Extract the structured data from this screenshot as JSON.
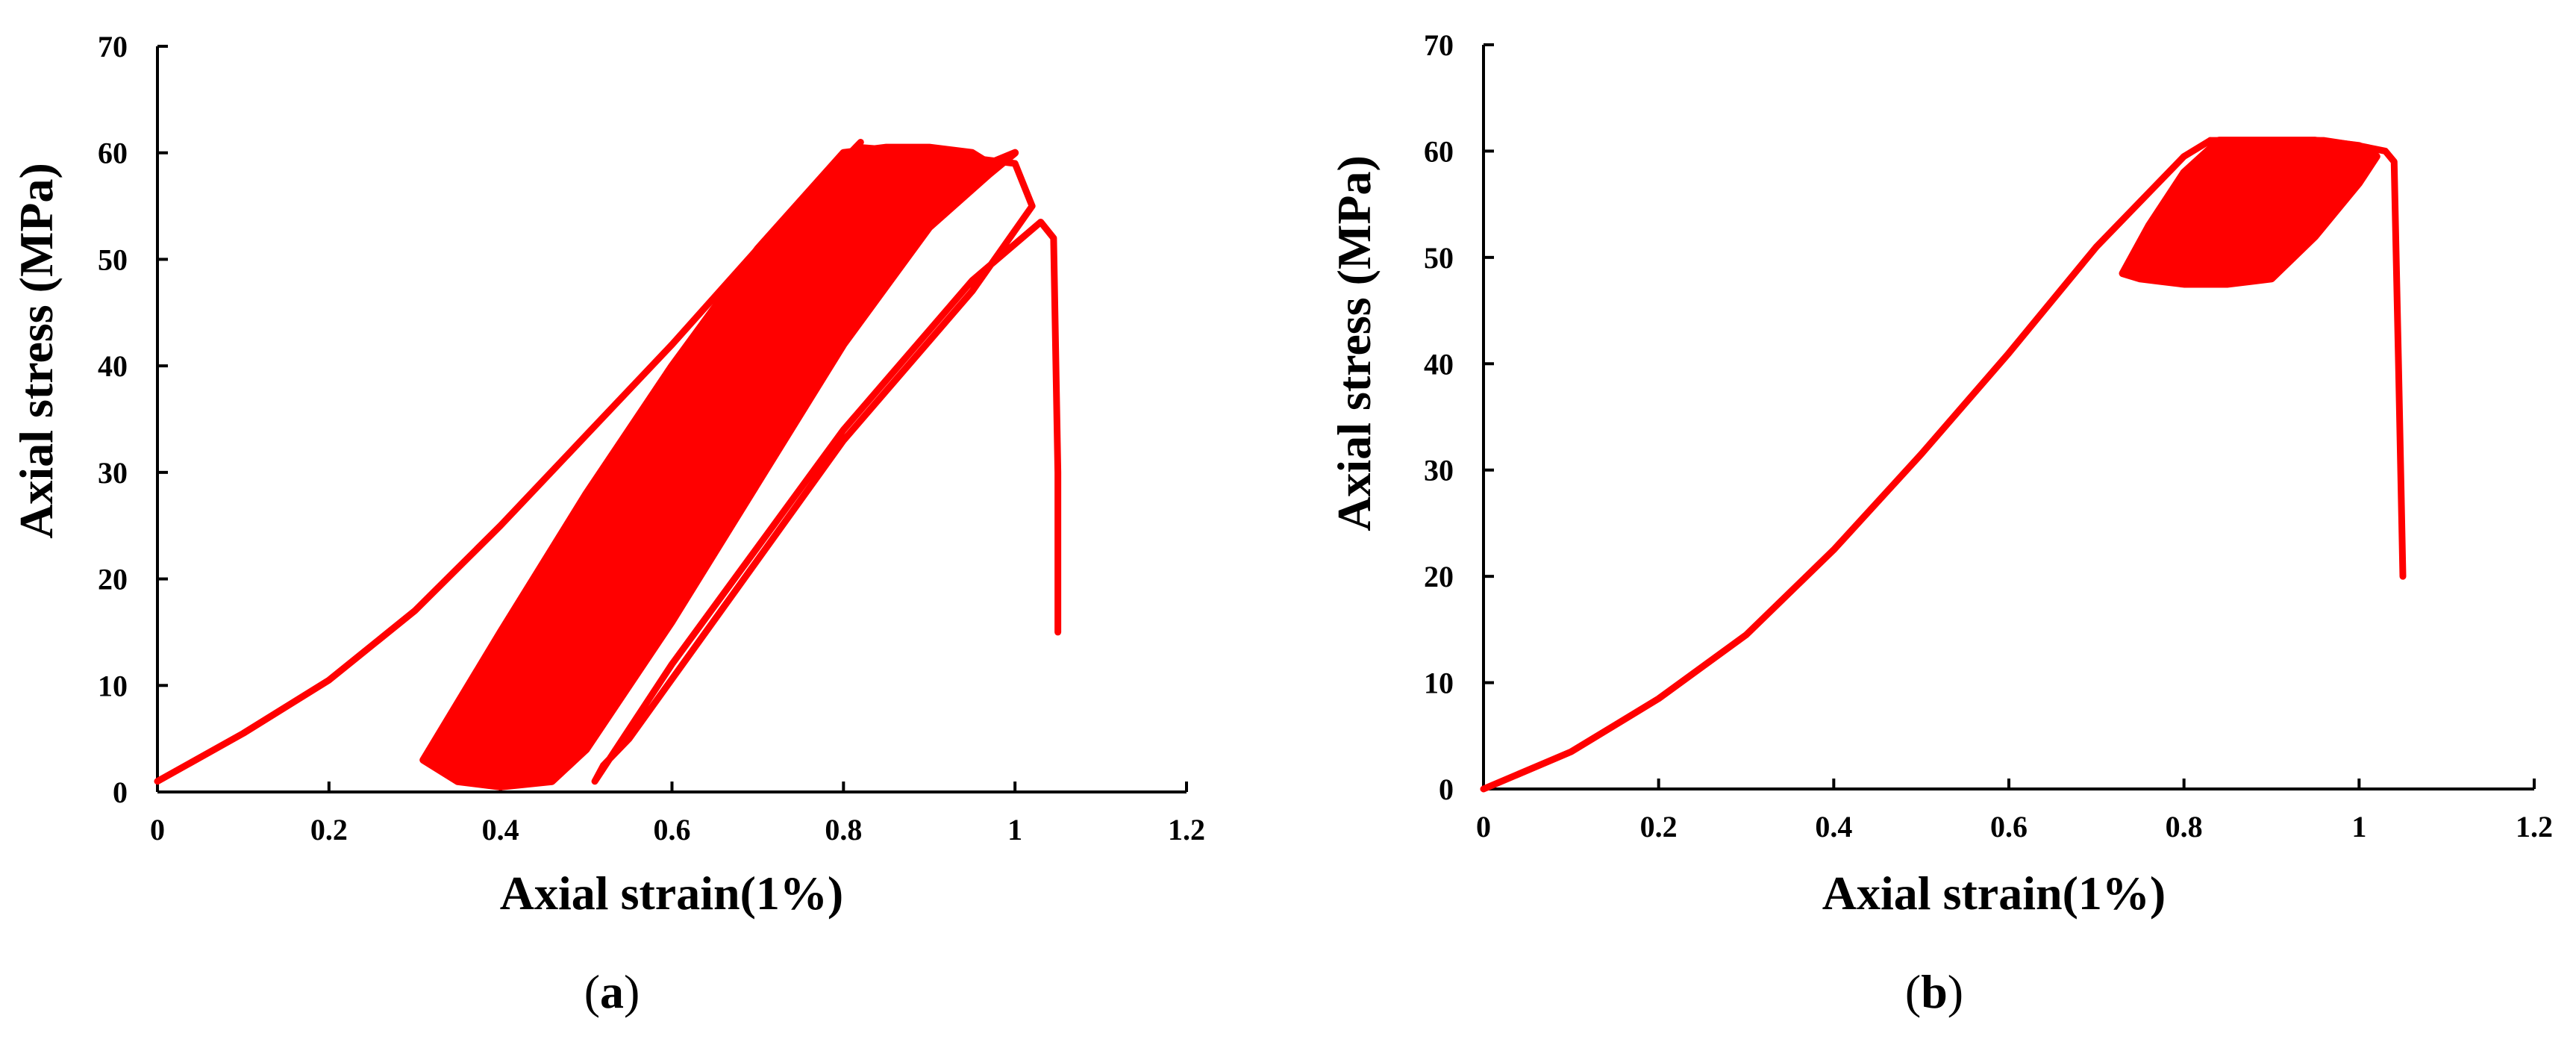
{
  "chart_data": [
    {
      "type": "line",
      "panel_label": "a",
      "xlabel": "Axial strain(1%)",
      "ylabel": "Axial stress (MPa)",
      "xlim": [
        0,
        1.2
      ],
      "ylim": [
        0,
        70
      ],
      "xticks": [
        0,
        0.2,
        0.4,
        0.6,
        0.8,
        1,
        1.2
      ],
      "xtick_labels": [
        "0",
        "0.2",
        "0.4",
        "0.6",
        "0.8",
        "1",
        "1.2"
      ],
      "yticks": [
        0,
        10,
        20,
        30,
        40,
        50,
        60,
        70
      ],
      "ytick_labels": [
        "0",
        "10",
        "20",
        "30",
        "40",
        "50",
        "60",
        "70"
      ],
      "grid": false,
      "color": "#ff0000",
      "series": [
        {
          "x": [
            0,
            0.1,
            0.2,
            0.3,
            0.4,
            0.5,
            0.6,
            0.7,
            0.82
          ],
          "y": [
            1,
            5.5,
            10.5,
            17,
            25,
            33.5,
            42,
            51,
            61
          ]
        },
        {
          "x": [
            0.82,
            0.9,
            1.0,
            1.02,
            0.95,
            0.8,
            0.55,
            0.52,
            0.51,
            0.6,
            0.8,
            0.95,
            1.03,
            1.045,
            1.05,
            1.05
          ],
          "y": [
            60.5,
            60,
            59,
            55,
            47,
            33,
            5,
            2.5,
            1,
            12,
            34,
            48,
            53.5,
            52,
            30,
            15
          ]
        }
      ],
      "hysteresis_band": {
        "lower_edge": {
          "x": [
            0.31,
            0.35,
            0.4,
            0.46,
            0.5,
            0.6,
            0.7,
            0.8,
            0.9,
            0.97,
            1.0
          ],
          "y": [
            3,
            1,
            0.5,
            1,
            4,
            16,
            29,
            42,
            53,
            58,
            60
          ]
        },
        "upper_edge": {
          "x": [
            0.31,
            0.4,
            0.5,
            0.6,
            0.7,
            0.8,
            0.85,
            0.9,
            0.95,
            0.97
          ],
          "y": [
            3,
            15,
            28,
            40,
            51,
            60,
            60.5,
            60.5,
            60,
            59
          ]
        }
      }
    },
    {
      "type": "line",
      "panel_label": "b",
      "xlabel": "Axial strain(1%)",
      "ylabel": "Axial stress (MPa)",
      "xlim": [
        0,
        1.2
      ],
      "ylim": [
        0,
        70
      ],
      "xticks": [
        0,
        0.2,
        0.4,
        0.6,
        0.8,
        1,
        1.2
      ],
      "xtick_labels": [
        "0",
        "0.2",
        "0.4",
        "0.6",
        "0.8",
        "1",
        "1.2"
      ],
      "yticks": [
        0,
        10,
        20,
        30,
        40,
        50,
        60,
        70
      ],
      "ytick_labels": [
        "0",
        "10",
        "20",
        "30",
        "40",
        "50",
        "60",
        "70"
      ],
      "grid": false,
      "color": "#ff0000",
      "series": [
        {
          "x": [
            0,
            0.1,
            0.2,
            0.3,
            0.4,
            0.5,
            0.6,
            0.7,
            0.8,
            0.83
          ],
          "y": [
            0,
            3.5,
            8.5,
            14.5,
            22.5,
            31.5,
            41,
            51,
            59.5,
            61
          ]
        },
        {
          "x": [
            0.83,
            0.9,
            0.96,
            1.0,
            1.03,
            1.04,
            1.045,
            1.05
          ],
          "y": [
            61,
            61,
            61,
            60.5,
            60,
            59,
            40,
            20
          ]
        }
      ],
      "hysteresis_band": {
        "lower_edge": {
          "x": [
            0.73,
            0.75,
            0.8,
            0.85,
            0.9,
            0.95,
            1.0,
            1.02
          ],
          "y": [
            48.5,
            48,
            47.5,
            47.5,
            48,
            52,
            57,
            59.5
          ]
        },
        "upper_edge": {
          "x": [
            0.73,
            0.76,
            0.8,
            0.84,
            0.9,
            0.95,
            1.0,
            1.02
          ],
          "y": [
            48.5,
            53,
            58,
            61,
            61,
            61,
            60.5,
            59.5
          ]
        }
      }
    }
  ]
}
